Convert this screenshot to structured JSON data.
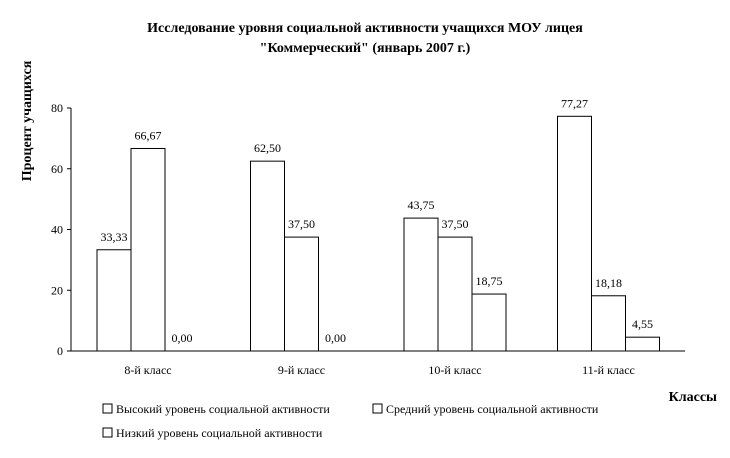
{
  "chart_data": {
    "type": "bar",
    "title_lines": [
      "Исследование  уровня  социальной  активности  учащихся  МОУ  лицея",
      "\"Коммерческий\"  (январь 2007 г.)"
    ],
    "xlabel": "Классы",
    "ylabel": "Процент учащихся",
    "ylim": [
      0,
      80
    ],
    "yticks": [
      "0",
      "20",
      "40",
      "60",
      "80"
    ],
    "categories": [
      "8-й класс",
      "9-й класс",
      "10-й класс",
      "11-й класс"
    ],
    "series": [
      {
        "name": "Высокий уровень социальной активности",
        "values": [
          33.33,
          62.5,
          43.75,
          77.27
        ],
        "labels": [
          "33,33",
          "62,50",
          "43,75",
          "77,27"
        ]
      },
      {
        "name": "Средний уровень социальной активности",
        "values": [
          66.67,
          37.5,
          37.5,
          18.18
        ],
        "labels": [
          "66,67",
          "37,50",
          "37,50",
          "18,18"
        ]
      },
      {
        "name": "Низкий уровень социальной активности",
        "values": [
          0.0,
          0.0,
          18.75,
          4.55
        ],
        "labels": [
          "0,00",
          "0,00",
          "18,75",
          "4,55"
        ]
      }
    ],
    "bar_fill": "#ffffff",
    "bar_stroke": "#000000",
    "grid": false,
    "legend_position": "bottom"
  }
}
